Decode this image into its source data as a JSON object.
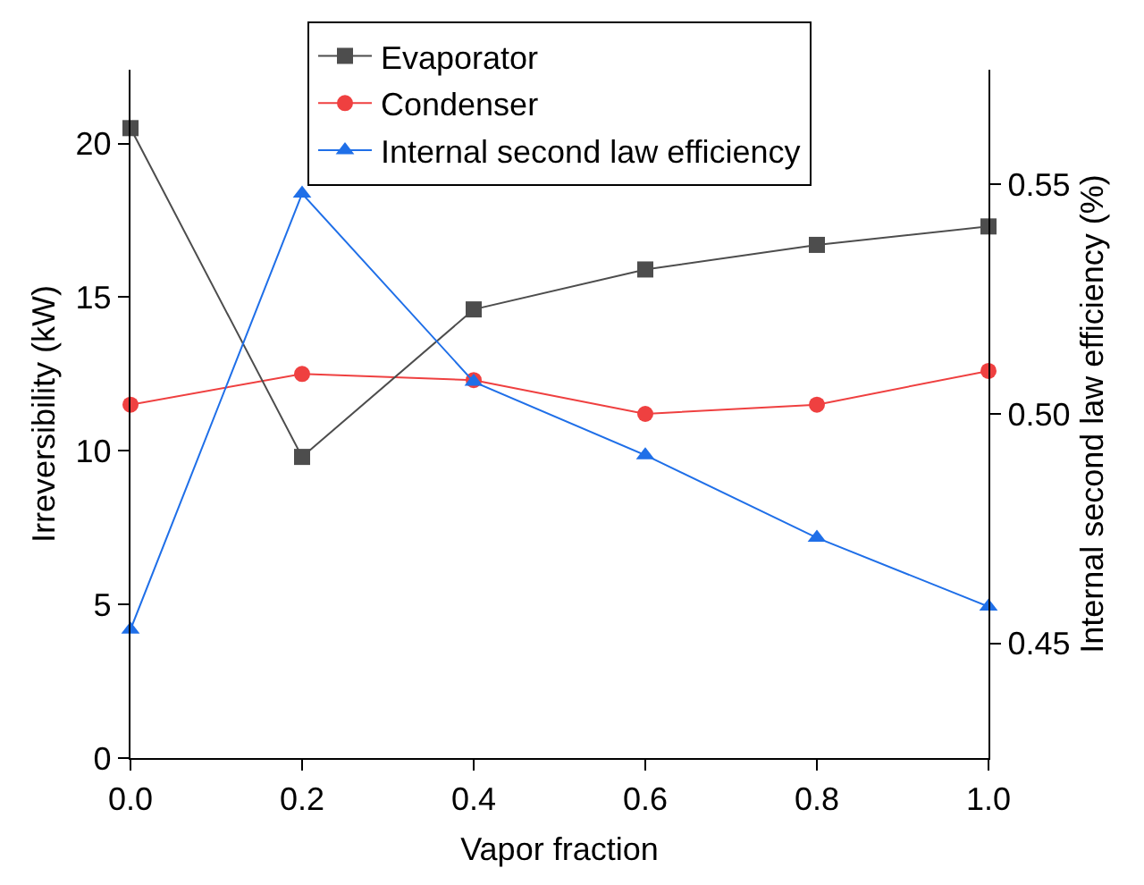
{
  "chart_data": {
    "type": "line",
    "xlabel": "Vapor fraction",
    "ylabel": "Irreversibility (kW)",
    "y2label": "Internal second law efficiency (%)",
    "x": [
      0,
      0.2,
      0.4,
      0.6,
      0.8,
      1.0
    ],
    "series": [
      {
        "name": "Evaporator",
        "color": "#4d4d4d",
        "marker": "square",
        "values": [
          20.5,
          9.8,
          14.6,
          15.9,
          16.7,
          17.3
        ]
      },
      {
        "name": "Condenser",
        "color": "#ef4040",
        "marker": "circle",
        "values": [
          11.5,
          12.5,
          12.3,
          11.2,
          11.5,
          12.6
        ]
      },
      {
        "name": "Internal second law efficiency",
        "color": "#1f6fe8",
        "marker": "triangle",
        "axis": "y2",
        "values": [
          0.453,
          0.548,
          0.507,
          0.491,
          0.473,
          0.458
        ]
      }
    ],
    "xlim": [
      0,
      1
    ],
    "xticks": [
      {
        "value": 0,
        "label": "0.0"
      },
      {
        "value": 0.2,
        "label": "0.2"
      },
      {
        "value": 0.4,
        "label": "0.4"
      },
      {
        "value": 0.6,
        "label": "0.6"
      },
      {
        "value": 0.8,
        "label": "0.8"
      },
      {
        "value": 1,
        "label": "1.0"
      }
    ],
    "ylim": [
      0,
      22.4
    ],
    "yticks": [
      0,
      5,
      10,
      15,
      20
    ],
    "y2lim": [
      0.425,
      0.575
    ],
    "y2ticks": [
      0.45,
      {
        "value": 0.5,
        "label": "0.50"
      },
      0.55
    ],
    "grid": false,
    "legend": "top",
    "line_style": "solid"
  }
}
